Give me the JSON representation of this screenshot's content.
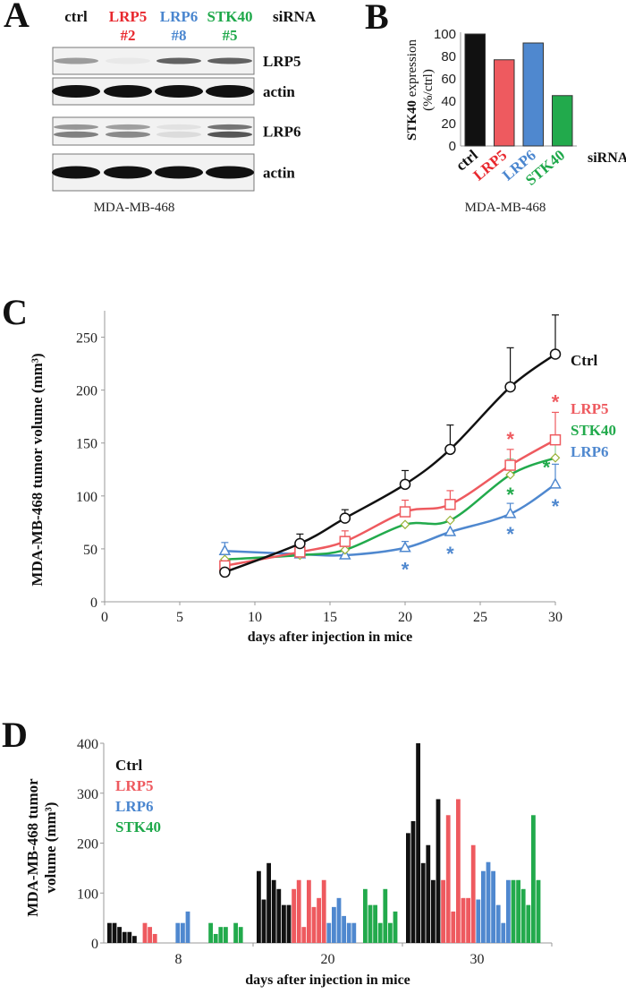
{
  "colors": {
    "ctrl": "#111111",
    "lrp5": "#ee5a5f",
    "lrp6": "#4f88cf",
    "stk40": "#22aa4c",
    "lrp5_label": "#e8282e",
    "lrp6_label": "#4a86cf",
    "stk40_label": "#1ea84a"
  },
  "panelA": {
    "letter": "A",
    "headers": [
      {
        "name": "ctrl",
        "line1": "ctrl",
        "line2": "",
        "color": "ctrl"
      },
      {
        "name": "LRP5",
        "line1": "LRP5",
        "line2": "#2",
        "color": "lrp5_label"
      },
      {
        "name": "LRP6",
        "line1": "LRP6",
        "line2": "#8",
        "color": "lrp6_label"
      },
      {
        "name": "STK40",
        "line1": "STK40",
        "line2": "#5",
        "color": "stk40_label"
      }
    ],
    "sirna_label": "siRNA",
    "blots": [
      {
        "label": "LRP5",
        "band_intensity": [
          0.45,
          0.05,
          0.75,
          0.75
        ],
        "double": false
      },
      {
        "label": "actin",
        "band_intensity": [
          1,
          1,
          1,
          1
        ],
        "double": false
      },
      {
        "label": "LRP6",
        "band_intensity": [
          0.55,
          0.5,
          0.1,
          0.75
        ],
        "double": true
      },
      {
        "label": "actin",
        "band_intensity": [
          1,
          1,
          1,
          1
        ],
        "double": false
      }
    ],
    "cell_line": "MDA-MB-468"
  },
  "panelB": {
    "letter": "B",
    "cell_line": "MDA-MB-468",
    "sirna_label": "siRNA"
  },
  "panelC": {
    "letter": "C",
    "significance_marker": "*"
  },
  "panelD": {
    "letter": "D"
  },
  "chart_data": [
    {
      "id": "B",
      "type": "bar",
      "title": "",
      "ylabel_line1": "STK40 expression",
      "ylabel_line2": "(%/ctrl)",
      "xlabel": "siRNA",
      "categories": [
        "ctrl",
        "LRP5",
        "LRP6",
        "STK40"
      ],
      "category_colors": [
        "ctrl",
        "lrp5",
        "lrp6",
        "stk40"
      ],
      "label_colors": [
        "ctrl",
        "lrp5_label",
        "lrp6_label",
        "stk40_label"
      ],
      "values": [
        100,
        77,
        92,
        45
      ],
      "ylim": [
        0,
        100
      ],
      "yticks": [
        0,
        20,
        40,
        60,
        80,
        100
      ]
    },
    {
      "id": "C",
      "type": "line",
      "ylabel": "MDA-MB-468 tumor volume (mm³)",
      "xlabel": "days after injection in mice",
      "xlim": [
        0,
        30
      ],
      "ylim": [
        0,
        275
      ],
      "xticks": [
        0,
        5,
        10,
        15,
        20,
        25,
        30
      ],
      "yticks": [
        0,
        50,
        100,
        150,
        200,
        250
      ],
      "x": [
        8,
        13,
        16,
        20,
        23,
        27,
        30
      ],
      "series": [
        {
          "name": "Ctrl",
          "color": "ctrl",
          "marker": "circle",
          "values": [
            28,
            55,
            79,
            111,
            144,
            203,
            234
          ],
          "errors": [
            0,
            9,
            8,
            13,
            23,
            37,
            37
          ],
          "significant": [
            false,
            false,
            false,
            false,
            false,
            false,
            false
          ]
        },
        {
          "name": "LRP5",
          "color": "lrp5",
          "marker": "square",
          "values": [
            34,
            47,
            57,
            85,
            92,
            129,
            153
          ],
          "errors": [
            0,
            0,
            10,
            11,
            13,
            15,
            26
          ],
          "significant": [
            false,
            false,
            false,
            false,
            false,
            true,
            true
          ]
        },
        {
          "name": "STK40",
          "color": "stk40",
          "marker": "diamond",
          "values": [
            40,
            44,
            49,
            73,
            77,
            120,
            136
          ],
          "errors": [
            0,
            0,
            0,
            0,
            0,
            15,
            18
          ],
          "significant": [
            false,
            false,
            false,
            false,
            false,
            true,
            true
          ]
        },
        {
          "name": "LRP6",
          "color": "lrp6",
          "marker": "triangle",
          "values": [
            48,
            45,
            44,
            51,
            66,
            83,
            111
          ],
          "errors": [
            8,
            0,
            0,
            6,
            0,
            10,
            19
          ],
          "significant": [
            false,
            false,
            false,
            true,
            true,
            true,
            true
          ]
        }
      ]
    },
    {
      "id": "D",
      "type": "bar",
      "ylabel_line1": "MDA-MB-468 tumor",
      "ylabel_line2": "volume (mm³)",
      "xlabel": "days after injection in mice",
      "ylim": [
        0,
        400
      ],
      "yticks": [
        0,
        100,
        200,
        300,
        400
      ],
      "categories": [
        "8",
        "20",
        "30"
      ],
      "legend": [
        "Ctrl",
        "LRP5",
        "LRP6",
        "STK40"
      ],
      "legend_position": "top-left",
      "groups": [
        {
          "day": "8",
          "Ctrl": [
            40,
            40,
            32,
            22,
            22,
            14
          ],
          "LRP5": [
            40,
            32,
            18
          ],
          "LRP6": [
            40,
            40,
            63
          ],
          "STK40": [
            40,
            18,
            32,
            32,
            0,
            40,
            32
          ]
        },
        {
          "day": "20",
          "Ctrl": [
            144,
            87,
            160,
            126,
            108,
            76,
            76
          ],
          "LRP5": [
            108,
            126,
            32,
            126,
            72,
            90,
            126
          ],
          "LRP6": [
            40,
            72,
            90,
            54,
            40,
            40
          ],
          "STK40": [
            108,
            76,
            76,
            40,
            108,
            40,
            63
          ]
        },
        {
          "day": "30",
          "Ctrl": [
            220,
            244,
            400,
            160,
            196,
            126,
            288
          ],
          "LRP5": [
            126,
            256,
            63,
            288,
            90,
            90,
            196
          ],
          "LRP6": [
            87,
            144,
            162,
            144,
            76,
            40,
            126
          ],
          "STK40": [
            126,
            126,
            108,
            76,
            256,
            126
          ]
        }
      ]
    }
  ]
}
